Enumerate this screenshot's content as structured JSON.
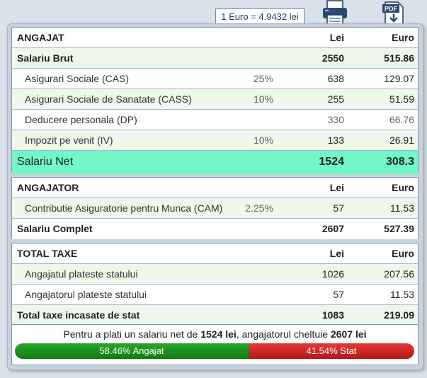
{
  "exchange_rate": "1 Euro = 4.9432 lei",
  "icons": {
    "print": "printer-icon",
    "pdf": "pdf-download-icon",
    "pdf_label": "PDF"
  },
  "colors": {
    "net_row": "#72f7c8",
    "employee_bar": "#1a8f1a",
    "state_bar": "#c82020",
    "alt_row": "#eef7ea"
  },
  "angajat": {
    "header": {
      "label": "ANGAJAT",
      "lei": "Lei",
      "euro": "Euro"
    },
    "brut": {
      "label": "Salariu Brut",
      "lei": "2550",
      "euro": "515.86"
    },
    "items": [
      {
        "label": "Asigurari Sociale (CAS)",
        "pct": "25%",
        "lei": "638",
        "euro": "129.07"
      },
      {
        "label": "Asigurari Sociale de Sanatate (CASS)",
        "pct": "10%",
        "lei": "255",
        "euro": "51.59"
      },
      {
        "label": "Deducere personala (DP)",
        "pct": "",
        "lei": "330",
        "euro": "66.76"
      },
      {
        "label": "Impozit pe venit (IV)",
        "pct": "10%",
        "lei": "133",
        "euro": "26.91"
      }
    ],
    "net": {
      "label": "Salariu Net",
      "lei": "1524",
      "euro": "308.3"
    }
  },
  "angajator": {
    "header": {
      "label": "ANGAJATOR",
      "lei": "Lei",
      "euro": "Euro"
    },
    "items": [
      {
        "label": "Contributie Asiguratorie pentru Munca (CAM)",
        "pct": "2.25%",
        "lei": "57",
        "euro": "11.53"
      }
    ],
    "complet": {
      "label": "Salariu Complet",
      "lei": "2607",
      "euro": "527.39"
    }
  },
  "taxe": {
    "header": {
      "label": "TOTAL TAXE",
      "lei": "Lei",
      "euro": "Euro"
    },
    "items": [
      {
        "label": "Angajatul plateste statului",
        "lei": "1026",
        "euro": "207.56"
      },
      {
        "label": "Angajatorul plateste statului",
        "lei": "57",
        "euro": "11.53"
      }
    ],
    "total": {
      "label": "Total taxe incasate de stat",
      "lei": "1083",
      "euro": "219.09"
    }
  },
  "summary": {
    "prefix": "Pentru a plati un salariu net de ",
    "net": "1524 lei",
    "middle": ", angajatorul cheltuie ",
    "total": "2607 lei"
  },
  "split": {
    "employee_fraction": 0.5846,
    "employee_label": "58.46% Angajat",
    "state_label": "41.54% Stat"
  }
}
